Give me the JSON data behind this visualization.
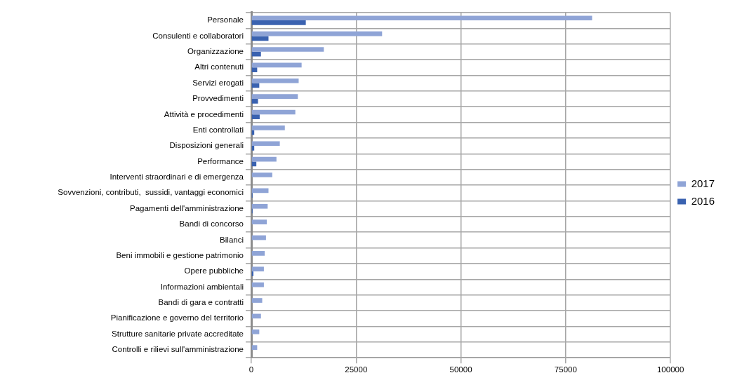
{
  "chart_data": {
    "type": "bar",
    "orientation": "horizontal",
    "categories": [
      "Personale",
      "Consulenti e collaboratori",
      "Organizzazione",
      "Altri contenuti",
      "Servizi erogati",
      "Provvedimenti",
      "Attività e procedimenti",
      "Enti controllati",
      "Disposizioni generali",
      "Performance",
      "Interventi straordinari e di emergenza",
      "Sovvenzioni, contributi,  sussidi, vantaggi economici",
      "Pagamenti dell'amministrazione",
      "Bandi di concorso",
      "Bilanci",
      "Beni immobili e gestione patrimonio",
      "Opere pubbliche",
      "Informazioni ambientali",
      "Bandi di gara e contratti",
      "Pianificazione e governo del territorio",
      "Strutture sanitarie private accreditate",
      "Controlli e rilievi sull'amministrazione"
    ],
    "series": [
      {
        "name": "2017",
        "color": "#8fa4d6",
        "values": [
          81300,
          31200,
          17300,
          12000,
          11300,
          11100,
          10500,
          8000,
          6800,
          6000,
          5000,
          4100,
          3900,
          3700,
          3500,
          3200,
          3000,
          3000,
          2600,
          2300,
          1900,
          1400
        ]
      },
      {
        "name": "2016",
        "color": "#3a62b0",
        "values": [
          13000,
          4100,
          2300,
          1400,
          1900,
          1600,
          2000,
          700,
          700,
          1200,
          null,
          300,
          300,
          0,
          0,
          0,
          500,
          0,
          0,
          0,
          0,
          0
        ]
      }
    ],
    "xlim": [
      0,
      100000
    ],
    "xticks": [
      0,
      25000,
      50000,
      75000,
      100000
    ],
    "grid": true,
    "legend": "right"
  }
}
